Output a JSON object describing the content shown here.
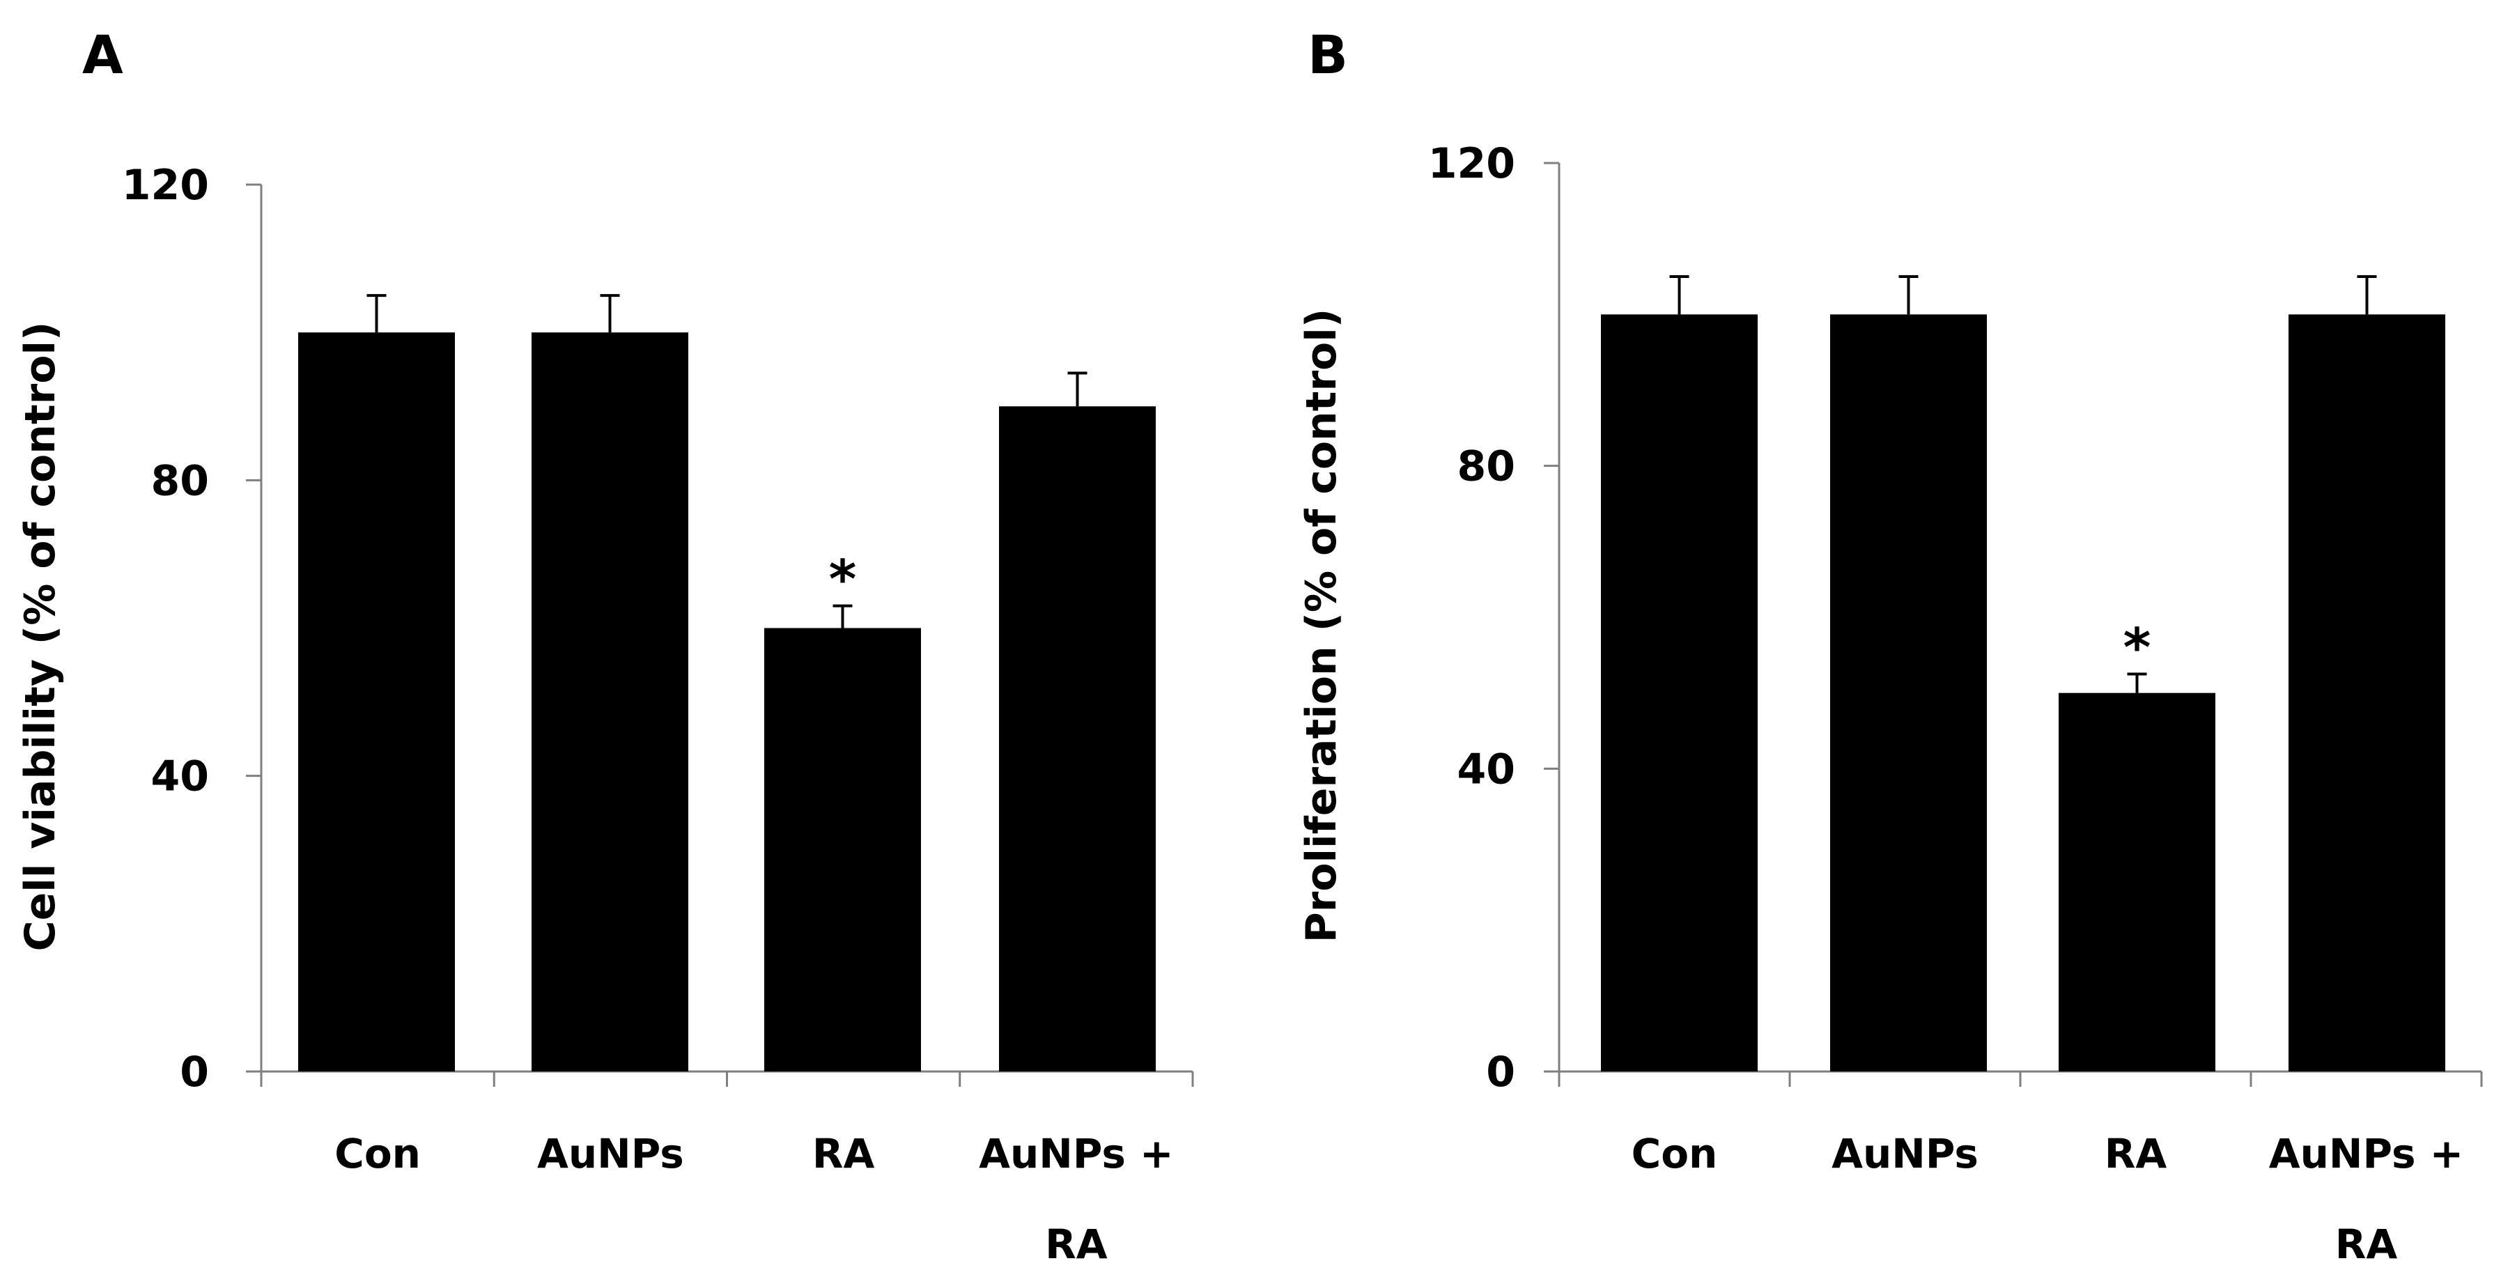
{
  "colors": {
    "bar": "#000000",
    "axis": "#7f7f7f",
    "text": "#000000"
  },
  "chart_data": [
    {
      "type": "bar",
      "panel": "A",
      "title": "",
      "xlabel": "",
      "ylabel": "Cell viability (% of control)",
      "ylim": [
        0,
        120
      ],
      "yticks": [
        0,
        40,
        80,
        120
      ],
      "grid": false,
      "legend": "none",
      "categories": [
        [
          "Con"
        ],
        [
          "AuNPs"
        ],
        [
          "RA"
        ],
        [
          "AuNPs +",
          "RA"
        ]
      ],
      "values": [
        100,
        100,
        60,
        90
      ],
      "errors": [
        5,
        5,
        3,
        4.5
      ],
      "annotations": [
        "",
        "",
        "*",
        ""
      ]
    },
    {
      "type": "bar",
      "panel": "B",
      "title": "",
      "xlabel": "",
      "ylabel": "Proliferation (% of control)",
      "ylim": [
        0,
        120
      ],
      "yticks": [
        0,
        40,
        80,
        120
      ],
      "grid": false,
      "legend": "none",
      "categories": [
        [
          "Con"
        ],
        [
          "AuNPs"
        ],
        [
          "RA"
        ],
        [
          "AuNPs +",
          "RA"
        ]
      ],
      "values": [
        100,
        100,
        50,
        100
      ],
      "errors": [
        5,
        5,
        2.5,
        5
      ],
      "annotations": [
        "",
        "",
        "*",
        ""
      ]
    }
  ]
}
